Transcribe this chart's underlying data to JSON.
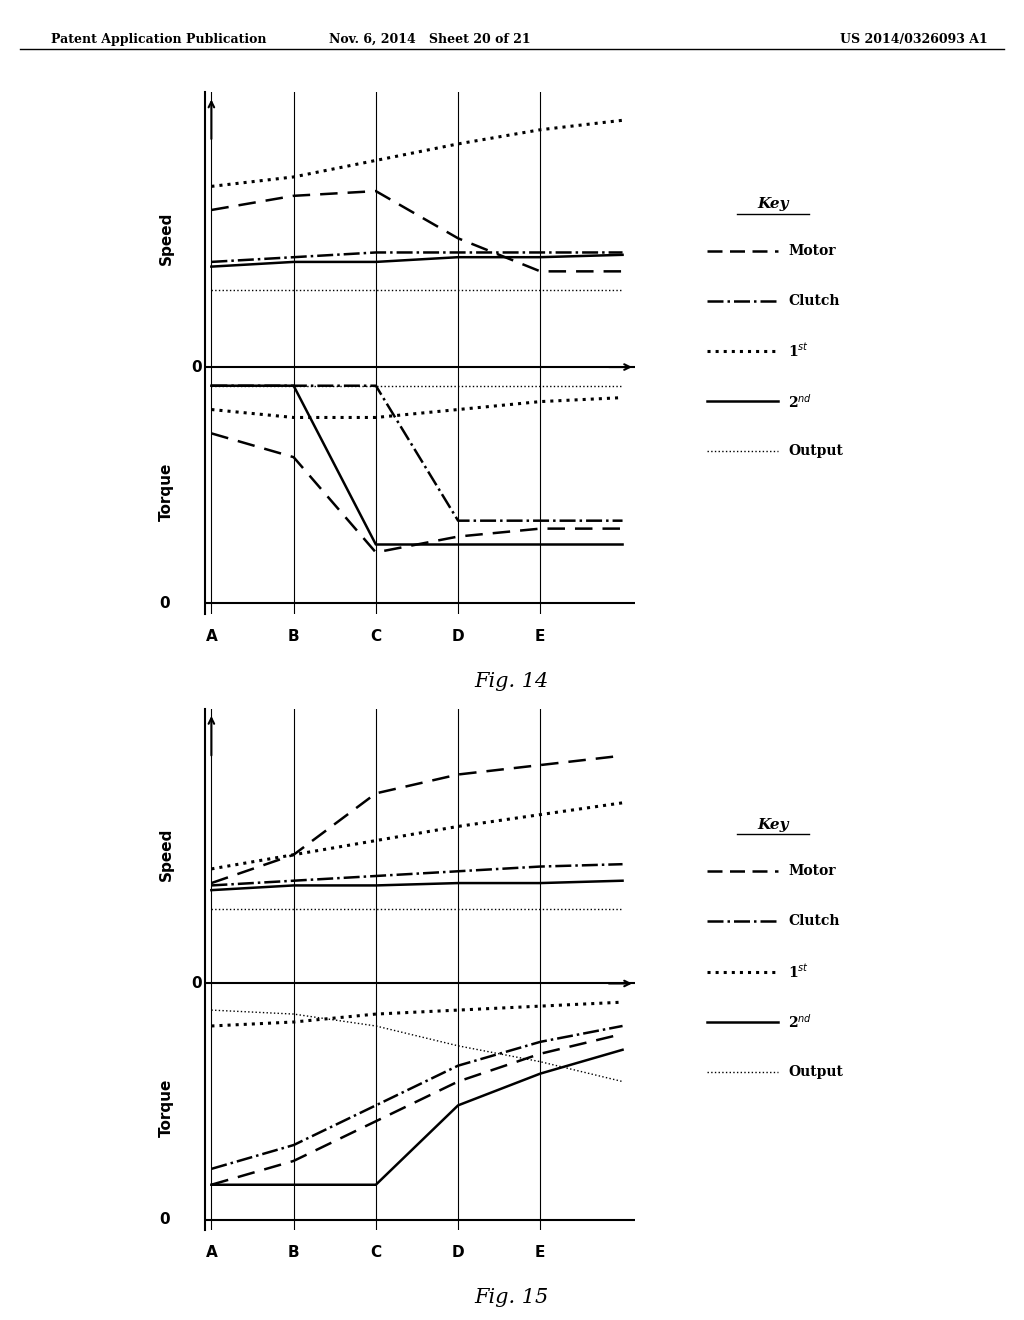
{
  "header_left": "Patent Application Publication",
  "header_mid": "Nov. 6, 2014   Sheet 20 of 21",
  "header_right": "US 2014/0326093 A1",
  "fig14_label": "Fig. 14",
  "fig15_label": "Fig. 15",
  "background": "#ffffff",
  "x_ticks": [
    "A",
    "B",
    "C",
    "D",
    "E"
  ],
  "speed_label": "Speed",
  "torque_label": "Torque",
  "key_labels": [
    "Motor",
    "Clutch",
    "1st",
    "2nd",
    "Output"
  ],
  "fig14": {
    "speed": {
      "motor": [
        0.62,
        0.68,
        0.7,
        0.5,
        0.36,
        0.36
      ],
      "clutch": [
        0.4,
        0.42,
        0.44,
        0.44,
        0.44,
        0.44
      ],
      "first": [
        0.72,
        0.76,
        0.83,
        0.9,
        0.96,
        1.0
      ],
      "second": [
        0.38,
        0.4,
        0.4,
        0.42,
        0.42,
        0.43
      ],
      "output": [
        0.28,
        0.28,
        0.28,
        0.28,
        0.28,
        0.28
      ]
    },
    "torque": {
      "motor": [
        0.14,
        0.2,
        0.44,
        0.4,
        0.38,
        0.38
      ],
      "clutch": [
        0.02,
        0.02,
        0.02,
        0.36,
        0.36,
        0.36
      ],
      "first": [
        0.08,
        0.1,
        0.1,
        0.08,
        0.06,
        0.05
      ],
      "second": [
        0.02,
        0.02,
        0.42,
        0.42,
        0.42,
        0.42
      ],
      "output": [
        0.02,
        0.02,
        0.02,
        0.02,
        0.02,
        0.02
      ]
    }
  },
  "fig15": {
    "speed": {
      "motor": [
        0.38,
        0.5,
        0.76,
        0.84,
        0.88,
        0.92
      ],
      "clutch": [
        0.37,
        0.39,
        0.41,
        0.43,
        0.45,
        0.46
      ],
      "first": [
        0.44,
        0.5,
        0.56,
        0.62,
        0.67,
        0.72
      ],
      "second": [
        0.35,
        0.37,
        0.37,
        0.38,
        0.38,
        0.39
      ],
      "output": [
        0.27,
        0.27,
        0.27,
        0.27,
        0.27,
        0.27
      ]
    },
    "torque": {
      "motor": [
        0.48,
        0.42,
        0.32,
        0.22,
        0.15,
        0.1
      ],
      "clutch": [
        0.44,
        0.38,
        0.28,
        0.18,
        0.12,
        0.08
      ],
      "first": [
        0.08,
        0.07,
        0.05,
        0.04,
        0.03,
        0.02
      ],
      "second": [
        0.48,
        0.48,
        0.48,
        0.28,
        0.2,
        0.14
      ],
      "output": [
        0.04,
        0.05,
        0.08,
        0.13,
        0.17,
        0.22
      ]
    }
  }
}
